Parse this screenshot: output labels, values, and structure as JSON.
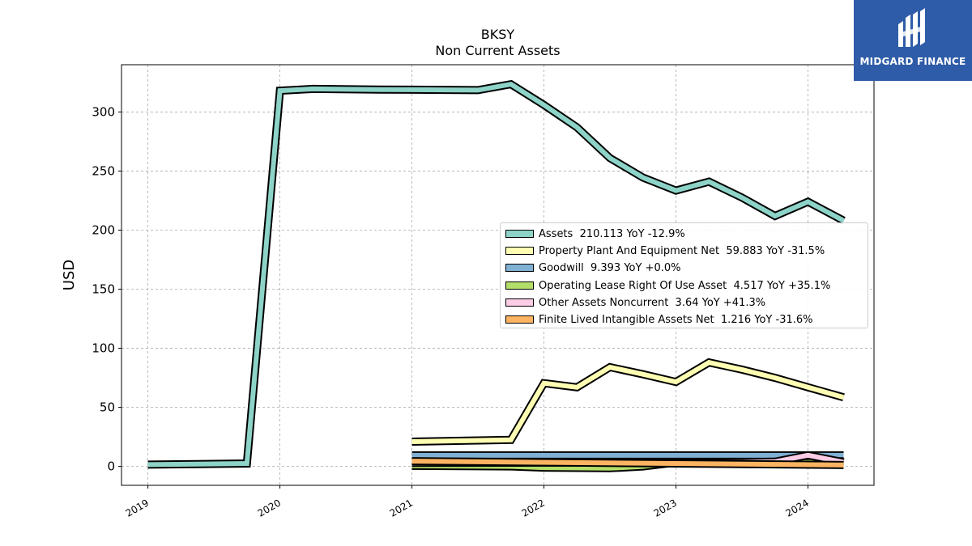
{
  "chart_data": {
    "type": "area",
    "title": "BKSY",
    "subtitle": "Non Current  Assets",
    "ylabel": "USD",
    "xlabel": "",
    "xlim": [
      2018.8,
      2024.5
    ],
    "ylim": [
      -16,
      340
    ],
    "yticks": [
      0,
      50,
      100,
      150,
      200,
      250,
      300
    ],
    "ytick_labels": [
      "0",
      "50",
      "100",
      "150",
      "200",
      "250",
      "300"
    ],
    "xticks": [
      2019,
      2020,
      2021,
      2022,
      2023,
      2024
    ],
    "xtick_labels": [
      "2019",
      "2020",
      "2021",
      "2022",
      "2023",
      "2024"
    ],
    "grid": true,
    "legend_position": "center-right",
    "series": [
      {
        "name": "Assets",
        "legend": "Assets  210.113 YoY -12.9%",
        "color": "#8dd3c7",
        "x": [
          2019.0,
          2019.75,
          2020.0,
          2020.25,
          2020.75,
          2021.5,
          2021.75,
          2022.0,
          2022.25,
          2022.5,
          2022.75,
          2023.0,
          2023.25,
          2023.5,
          2023.75,
          2024.0,
          2024.27
        ],
        "y": [
          1.5,
          2.5,
          318,
          319.5,
          319,
          318.5,
          323.5,
          306,
          287,
          261,
          244.5,
          233.5,
          241,
          227.5,
          212,
          224,
          208
        ]
      },
      {
        "name": "Property Plant And Equipment Net",
        "legend": "Property Plant And Equipment Net  59.883 YoY -31.5%",
        "color": "#ffffb3",
        "x": [
          2021.0,
          2021.75,
          2022.0,
          2022.25,
          2022.5,
          2022.75,
          2023.0,
          2023.25,
          2023.5,
          2023.75,
          2024.0,
          2024.27
        ],
        "y": [
          21,
          22.5,
          70.5,
          67,
          84,
          78,
          71.5,
          88,
          82,
          75,
          67,
          58.5
        ]
      },
      {
        "name": "Goodwill",
        "legend": "Goodwill  9.393 YoY +0.0%",
        "color": "#80b1d3",
        "x": [
          2021.0,
          2024.27
        ],
        "y": [
          9.4,
          9.4
        ]
      },
      {
        "name": "Operating Lease Right Of Use Asset",
        "legend": "Operating Lease Right Of Use Asset  4.517 YoY +35.1%",
        "color": "#b3de69",
        "x": [
          2021.0,
          2021.75,
          2022.0,
          2022.5,
          2022.75,
          2023.0,
          2023.5,
          2024.0,
          2024.27
        ],
        "y": [
          0.5,
          0.0,
          -1.0,
          -1.5,
          0.0,
          3.3,
          3.3,
          3.3,
          4.5
        ]
      },
      {
        "name": "Other Assets Noncurrent",
        "legend": "Other Assets Noncurrent  3.64 YoY +41.3%",
        "color": "#fccde5",
        "x": [
          2021.0,
          2023.5,
          2023.75,
          2024.0,
          2024.27
        ],
        "y": [
          3.0,
          3.5,
          4.0,
          9.5,
          3.6
        ]
      },
      {
        "name": "Finite Lived Intangible Assets Net",
        "legend": "Finite Lived Intangible Assets Net  1.216 YoY -31.6%",
        "color": "#fdb462",
        "x": [
          2021.0,
          2024.27
        ],
        "y": [
          4.5,
          1.2
        ]
      }
    ]
  },
  "logo": {
    "text": "MIDGARD FINANCE",
    "color": "#2f5ca8"
  }
}
